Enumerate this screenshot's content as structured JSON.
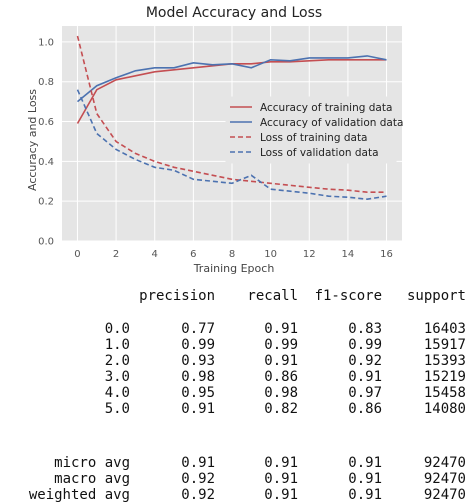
{
  "chart_data": {
    "type": "line",
    "title": "Model Accuracy and Loss",
    "xlabel": "Training Epoch",
    "ylabel": "Accuracy and Loss",
    "xlim": [
      -0.8,
      16.8
    ],
    "ylim": [
      0.0,
      1.08
    ],
    "xticks": [
      0,
      2,
      4,
      6,
      8,
      10,
      12,
      14,
      16
    ],
    "yticks": [
      0.0,
      0.2,
      0.4,
      0.6,
      0.8,
      1.0
    ],
    "grid": true,
    "legend_position": "center-right",
    "x": [
      0,
      1,
      2,
      3,
      4,
      5,
      6,
      7,
      8,
      9,
      10,
      11,
      12,
      13,
      14,
      15,
      16
    ],
    "series": [
      {
        "name": "Accuracy of training data",
        "color": "#c44e52",
        "style": "solid",
        "values": [
          0.59,
          0.76,
          0.81,
          0.83,
          0.85,
          0.86,
          0.87,
          0.88,
          0.89,
          0.89,
          0.9,
          0.9,
          0.905,
          0.91,
          0.91,
          0.91,
          0.91
        ]
      },
      {
        "name": "Accuracy of validation data",
        "color": "#4c72b0",
        "style": "solid",
        "values": [
          0.7,
          0.78,
          0.82,
          0.855,
          0.87,
          0.87,
          0.895,
          0.885,
          0.89,
          0.87,
          0.91,
          0.905,
          0.92,
          0.92,
          0.92,
          0.93,
          0.91
        ]
      },
      {
        "name": "Loss of training data",
        "color": "#c44e52",
        "style": "dashed",
        "values": [
          1.03,
          0.64,
          0.5,
          0.44,
          0.4,
          0.37,
          0.35,
          0.33,
          0.31,
          0.3,
          0.29,
          0.28,
          0.27,
          0.26,
          0.255,
          0.245,
          0.245
        ]
      },
      {
        "name": "Loss of validation data",
        "color": "#4c72b0",
        "style": "dashed",
        "values": [
          0.76,
          0.54,
          0.46,
          0.41,
          0.37,
          0.355,
          0.31,
          0.3,
          0.29,
          0.33,
          0.26,
          0.25,
          0.24,
          0.225,
          0.22,
          0.21,
          0.225
        ]
      }
    ]
  },
  "report": {
    "header": [
      "precision",
      "recall",
      "f1-score",
      "support"
    ],
    "rows": [
      {
        "label": "0.0",
        "precision": "0.77",
        "recall": "0.91",
        "f1": "0.83",
        "support": "16403"
      },
      {
        "label": "1.0",
        "precision": "0.99",
        "recall": "0.99",
        "f1": "0.99",
        "support": "15917"
      },
      {
        "label": "2.0",
        "precision": "0.93",
        "recall": "0.91",
        "f1": "0.92",
        "support": "15393"
      },
      {
        "label": "3.0",
        "precision": "0.98",
        "recall": "0.86",
        "f1": "0.91",
        "support": "15219"
      },
      {
        "label": "4.0",
        "precision": "0.95",
        "recall": "0.98",
        "f1": "0.97",
        "support": "15458"
      },
      {
        "label": "5.0",
        "precision": "0.91",
        "recall": "0.82",
        "f1": "0.86",
        "support": "14080"
      }
    ],
    "avg_rows": [
      {
        "label": "micro avg",
        "precision": "0.91",
        "recall": "0.91",
        "f1": "0.91",
        "support": "92470"
      },
      {
        "label": "macro avg",
        "precision": "0.92",
        "recall": "0.91",
        "f1": "0.91",
        "support": "92470"
      },
      {
        "label": "weighted avg",
        "precision": "0.92",
        "recall": "0.91",
        "f1": "0.91",
        "support": "92470"
      }
    ]
  }
}
